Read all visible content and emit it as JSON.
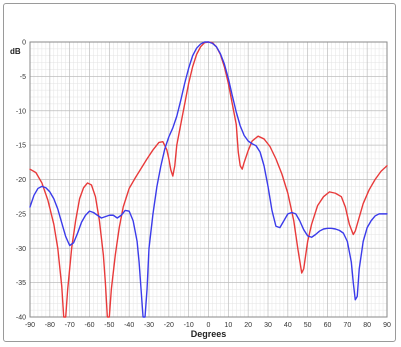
{
  "chart_data": {
    "type": "line",
    "xlabel": "Degrees",
    "ylabel": "dB",
    "xlim": [
      -90,
      90
    ],
    "ylim": [
      -40,
      0
    ],
    "x_ticks": [
      "-90",
      "-80",
      "-70",
      "-60",
      "-50",
      "-40",
      "-30",
      "-20",
      "-10",
      "0",
      "10",
      "20",
      "30",
      "40",
      "50",
      "60",
      "70",
      "80",
      "90"
    ],
    "y_ticks": [
      "0",
      "-5",
      "-10",
      "-15",
      "-20",
      "-25",
      "-30",
      "-35",
      "-40"
    ],
    "grid": true,
    "series": [
      {
        "color": "#e83a3a",
        "points": [
          [
            -90,
            -18.5
          ],
          [
            -87,
            -19.0
          ],
          [
            -84,
            -20.5
          ],
          [
            -81,
            -23.0
          ],
          [
            -78,
            -26.5
          ],
          [
            -76,
            -30.0
          ],
          [
            -74,
            -35.5
          ],
          [
            -73,
            -40.0
          ],
          [
            -72,
            -40.0
          ],
          [
            -71,
            -36.0
          ],
          [
            -69,
            -30.0
          ],
          [
            -67,
            -26.0
          ],
          [
            -65,
            -22.8
          ],
          [
            -63,
            -21.2
          ],
          [
            -61,
            -20.5
          ],
          [
            -59,
            -20.8
          ],
          [
            -57,
            -22.5
          ],
          [
            -55,
            -26.0
          ],
          [
            -53,
            -31.0
          ],
          [
            -52,
            -35.0
          ],
          [
            -51,
            -40.0
          ],
          [
            -50,
            -40.0
          ],
          [
            -49,
            -36.0
          ],
          [
            -47,
            -31.0
          ],
          [
            -45,
            -27.0
          ],
          [
            -43,
            -24.0
          ],
          [
            -40,
            -21.3
          ],
          [
            -37,
            -19.8
          ],
          [
            -34,
            -18.4
          ],
          [
            -31,
            -17.0
          ],
          [
            -28,
            -15.7
          ],
          [
            -25,
            -14.6
          ],
          [
            -23,
            -14.5
          ],
          [
            -21,
            -15.7
          ],
          [
            -20,
            -17.0
          ],
          [
            -19,
            -18.6
          ],
          [
            -18,
            -19.5
          ],
          [
            -17,
            -18.0
          ],
          [
            -16,
            -15.0
          ],
          [
            -14,
            -12.0
          ],
          [
            -12,
            -9.0
          ],
          [
            -10,
            -6.0
          ],
          [
            -8,
            -3.6
          ],
          [
            -6,
            -1.8
          ],
          [
            -4,
            -0.7
          ],
          [
            -2,
            -0.1
          ],
          [
            0,
            0.0
          ],
          [
            2,
            -0.1
          ],
          [
            4,
            -0.7
          ],
          [
            6,
            -1.8
          ],
          [
            8,
            -3.6
          ],
          [
            10,
            -6.0
          ],
          [
            12,
            -9.0
          ],
          [
            14,
            -12.0
          ],
          [
            15,
            -16.0
          ],
          [
            16,
            -18.0
          ],
          [
            17,
            -18.5
          ],
          [
            18,
            -17.5
          ],
          [
            20,
            -15.8
          ],
          [
            22,
            -14.4
          ],
          [
            25,
            -13.7
          ],
          [
            28,
            -14.1
          ],
          [
            31,
            -15.2
          ],
          [
            34,
            -17.0
          ],
          [
            37,
            -19.2
          ],
          [
            40,
            -22.0
          ],
          [
            43,
            -26.0
          ],
          [
            45,
            -30.0
          ],
          [
            47,
            -33.6
          ],
          [
            48,
            -33.0
          ],
          [
            50,
            -29.0
          ],
          [
            52,
            -26.5
          ],
          [
            55,
            -23.8
          ],
          [
            58,
            -22.5
          ],
          [
            61,
            -21.8
          ],
          [
            64,
            -22.0
          ],
          [
            67,
            -22.5
          ],
          [
            69,
            -24.0
          ],
          [
            71,
            -26.5
          ],
          [
            73,
            -28.0
          ],
          [
            74,
            -27.5
          ],
          [
            76,
            -25.5
          ],
          [
            78,
            -23.5
          ],
          [
            81,
            -21.5
          ],
          [
            84,
            -20.0
          ],
          [
            87,
            -18.8
          ],
          [
            90,
            -18.0
          ]
        ]
      },
      {
        "color": "#3b3bea",
        "points": [
          [
            -90,
            -24.0
          ],
          [
            -88,
            -22.3
          ],
          [
            -86,
            -21.3
          ],
          [
            -84,
            -21.0
          ],
          [
            -82,
            -21.2
          ],
          [
            -80,
            -21.8
          ],
          [
            -78,
            -22.8
          ],
          [
            -76,
            -24.3
          ],
          [
            -74,
            -26.3
          ],
          [
            -72,
            -28.3
          ],
          [
            -70,
            -29.6
          ],
          [
            -68,
            -29.2
          ],
          [
            -66,
            -27.8
          ],
          [
            -64,
            -26.2
          ],
          [
            -62,
            -25.2
          ],
          [
            -60,
            -24.6
          ],
          [
            -58,
            -24.8
          ],
          [
            -56,
            -25.2
          ],
          [
            -54,
            -25.6
          ],
          [
            -52,
            -25.4
          ],
          [
            -50,
            -25.2
          ],
          [
            -48,
            -25.2
          ],
          [
            -46,
            -25.6
          ],
          [
            -44,
            -25.2
          ],
          [
            -42,
            -24.5
          ],
          [
            -40,
            -24.6
          ],
          [
            -38,
            -26.0
          ],
          [
            -36,
            -29.0
          ],
          [
            -35,
            -32.0
          ],
          [
            -34,
            -36.0
          ],
          [
            -33,
            -40.0
          ],
          [
            -32,
            -40.0
          ],
          [
            -31,
            -36.0
          ],
          [
            -30,
            -30.0
          ],
          [
            -28,
            -25.0
          ],
          [
            -26,
            -21.0
          ],
          [
            -24,
            -18.0
          ],
          [
            -22,
            -15.5
          ],
          [
            -20,
            -13.8
          ],
          [
            -18,
            -12.5
          ],
          [
            -16,
            -10.8
          ],
          [
            -14,
            -8.5
          ],
          [
            -12,
            -6.0
          ],
          [
            -10,
            -3.8
          ],
          [
            -8,
            -2.0
          ],
          [
            -6,
            -0.9
          ],
          [
            -4,
            -0.3
          ],
          [
            -2,
            0.0
          ],
          [
            0,
            0.0
          ],
          [
            2,
            -0.2
          ],
          [
            4,
            -0.7
          ],
          [
            6,
            -1.7
          ],
          [
            8,
            -3.2
          ],
          [
            10,
            -5.3
          ],
          [
            12,
            -7.8
          ],
          [
            14,
            -10.2
          ],
          [
            16,
            -12.2
          ],
          [
            18,
            -13.6
          ],
          [
            20,
            -14.4
          ],
          [
            22,
            -14.8
          ],
          [
            24,
            -15.1
          ],
          [
            26,
            -16.0
          ],
          [
            28,
            -18.0
          ],
          [
            30,
            -21.0
          ],
          [
            32,
            -24.5
          ],
          [
            34,
            -26.8
          ],
          [
            36,
            -27.0
          ],
          [
            38,
            -26.0
          ],
          [
            40,
            -25.0
          ],
          [
            42,
            -24.8
          ],
          [
            44,
            -25.0
          ],
          [
            46,
            -26.0
          ],
          [
            48,
            -27.3
          ],
          [
            50,
            -28.2
          ],
          [
            52,
            -28.4
          ],
          [
            54,
            -28.0
          ],
          [
            56,
            -27.5
          ],
          [
            58,
            -27.2
          ],
          [
            60,
            -27.1
          ],
          [
            62,
            -27.1
          ],
          [
            64,
            -27.2
          ],
          [
            66,
            -27.4
          ],
          [
            68,
            -27.8
          ],
          [
            70,
            -29.0
          ],
          [
            72,
            -32.0
          ],
          [
            73,
            -35.0
          ],
          [
            74,
            -37.5
          ],
          [
            75,
            -37.0
          ],
          [
            76,
            -33.0
          ],
          [
            78,
            -29.0
          ],
          [
            80,
            -27.0
          ],
          [
            82,
            -26.0
          ],
          [
            84,
            -25.3
          ],
          [
            86,
            -25.0
          ],
          [
            88,
            -25.0
          ],
          [
            90,
            -25.0
          ]
        ]
      }
    ]
  }
}
